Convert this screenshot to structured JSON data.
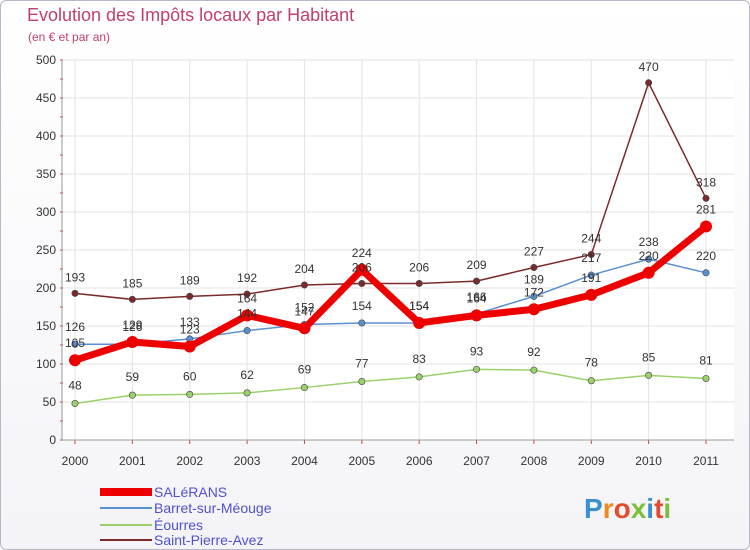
{
  "header": {
    "title": "Evolution des Impôts locaux par Habitant",
    "subtitle": "(en € et par an)"
  },
  "brand": {
    "name": "Proxiti"
  },
  "chart_data": {
    "type": "line",
    "title": "Evolution des Impôts locaux par Habitant",
    "subtitle": "(en € et par an)",
    "xlabel": "",
    "ylabel": "",
    "ylim": [
      0,
      500
    ],
    "yticks": [
      0,
      50,
      100,
      150,
      200,
      250,
      300,
      350,
      400,
      450,
      500
    ],
    "categories": [
      "2000",
      "2001",
      "2002",
      "2003",
      "2004",
      "2005",
      "2006",
      "2007",
      "2008",
      "2009",
      "2010",
      "2011"
    ],
    "grid": true,
    "legend": "bottom-left",
    "series": [
      {
        "name": "SALéRANS",
        "color": "#ee0000",
        "values": [
          105,
          129,
          123,
          164,
          147,
          224,
          154,
          164,
          172,
          191,
          220,
          281
        ]
      },
      {
        "name": "Barret-sur-Méouge",
        "color": "#5a8fcf",
        "values": [
          126,
          126,
          133,
          144,
          152,
          154,
          154,
          166,
          189,
          217,
          238,
          220
        ]
      },
      {
        "name": "Éourres",
        "color": "#9ad16a",
        "values": [
          48,
          59,
          60,
          62,
          69,
          77,
          83,
          93,
          92,
          78,
          85,
          81
        ]
      },
      {
        "name": "Saint-Pierre-Avez",
        "color": "#7a2a2a",
        "values": [
          193,
          185,
          189,
          192,
          204,
          206,
          206,
          209,
          227,
          244,
          470,
          318
        ]
      }
    ]
  }
}
